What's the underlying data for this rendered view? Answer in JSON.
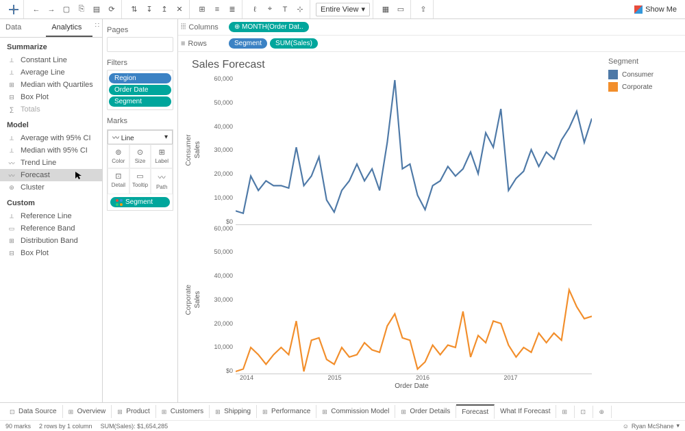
{
  "toolbar": {
    "view_dropdown": "Entire View",
    "showme": "Show Me"
  },
  "left_tabs": {
    "data": "Data",
    "analytics": "Analytics"
  },
  "analytics": {
    "summarize_hd": "Summarize",
    "summarize": [
      "Constant Line",
      "Average Line",
      "Median with Quartiles",
      "Box Plot",
      "Totals"
    ],
    "model_hd": "Model",
    "model": [
      "Average with 95% CI",
      "Median with 95% CI",
      "Trend Line",
      "Forecast",
      "Cluster"
    ],
    "custom_hd": "Custom",
    "custom": [
      "Reference Line",
      "Reference Band",
      "Distribution Band",
      "Box Plot"
    ]
  },
  "shelves": {
    "pages": "Pages",
    "filters": "Filters",
    "filter_pills": [
      "Region",
      "Order Date",
      "Segment"
    ],
    "marks": "Marks",
    "mark_type": "Line",
    "mark_cells": [
      [
        "Color",
        "Size",
        "Label"
      ],
      [
        "Detail",
        "Tooltip",
        "Path"
      ]
    ],
    "mark_pill": "Segment",
    "columns": "Columns",
    "rows": "Rows",
    "col_pill": "MONTH(Order Dat..",
    "row_pills": [
      "Segment",
      "SUM(Sales)"
    ]
  },
  "chart": {
    "title": "Sales Forecast",
    "segments": [
      "Consumer",
      "Corporate"
    ],
    "ylabel": "Sales",
    "xlabel": "Order Date",
    "yticks": [
      "60,000",
      "50,000",
      "40,000",
      "30,000",
      "20,000",
      "10,000",
      "$0"
    ],
    "yticks2": [
      "60,000",
      "50,000",
      "40,000",
      "30,000",
      "20,000",
      "10,000",
      "$0"
    ],
    "xticks": [
      "2014",
      "2015",
      "2016",
      "2017"
    ],
    "colors": {
      "consumer": "#4e79a7",
      "corporate": "#f28e2b"
    },
    "consumer_points": [
      5.5,
      4.5,
      20,
      14,
      18,
      16,
      16,
      15,
      32,
      16,
      20,
      28,
      10,
      5,
      14,
      18,
      25,
      18,
      23,
      14,
      34,
      60,
      23,
      25,
      12,
      6,
      16,
      18,
      24,
      20,
      23,
      30,
      21,
      38,
      32,
      48,
      14,
      19,
      22,
      31,
      24,
      30,
      27,
      35,
      40,
      47,
      34,
      44
    ],
    "corporate_points": [
      1,
      2,
      11,
      8,
      4,
      8,
      11,
      8,
      22,
      1,
      14,
      15,
      6,
      4,
      11,
      7,
      8,
      13,
      10,
      9,
      20,
      25,
      15,
      14,
      2,
      5,
      12,
      8,
      12,
      11,
      26,
      7,
      16,
      13,
      22,
      21,
      12,
      7,
      11,
      9,
      17,
      13,
      17,
      14,
      35,
      28,
      23,
      24
    ]
  },
  "legend": {
    "title": "Segment",
    "items": [
      {
        "label": "Consumer",
        "color": "#4e79a7"
      },
      {
        "label": "Corporate",
        "color": "#f28e2b"
      }
    ]
  },
  "sheets": [
    "Data Source",
    "Overview",
    "Product",
    "Customers",
    "Shipping",
    "Performance",
    "Commission Model",
    "Order Details",
    "Forecast",
    "What If Forecast"
  ],
  "status": {
    "marks": "90 marks",
    "rows": "2 rows by 1 column",
    "sum": "SUM(Sales): $1,654,285",
    "user": "Ryan McShane"
  }
}
